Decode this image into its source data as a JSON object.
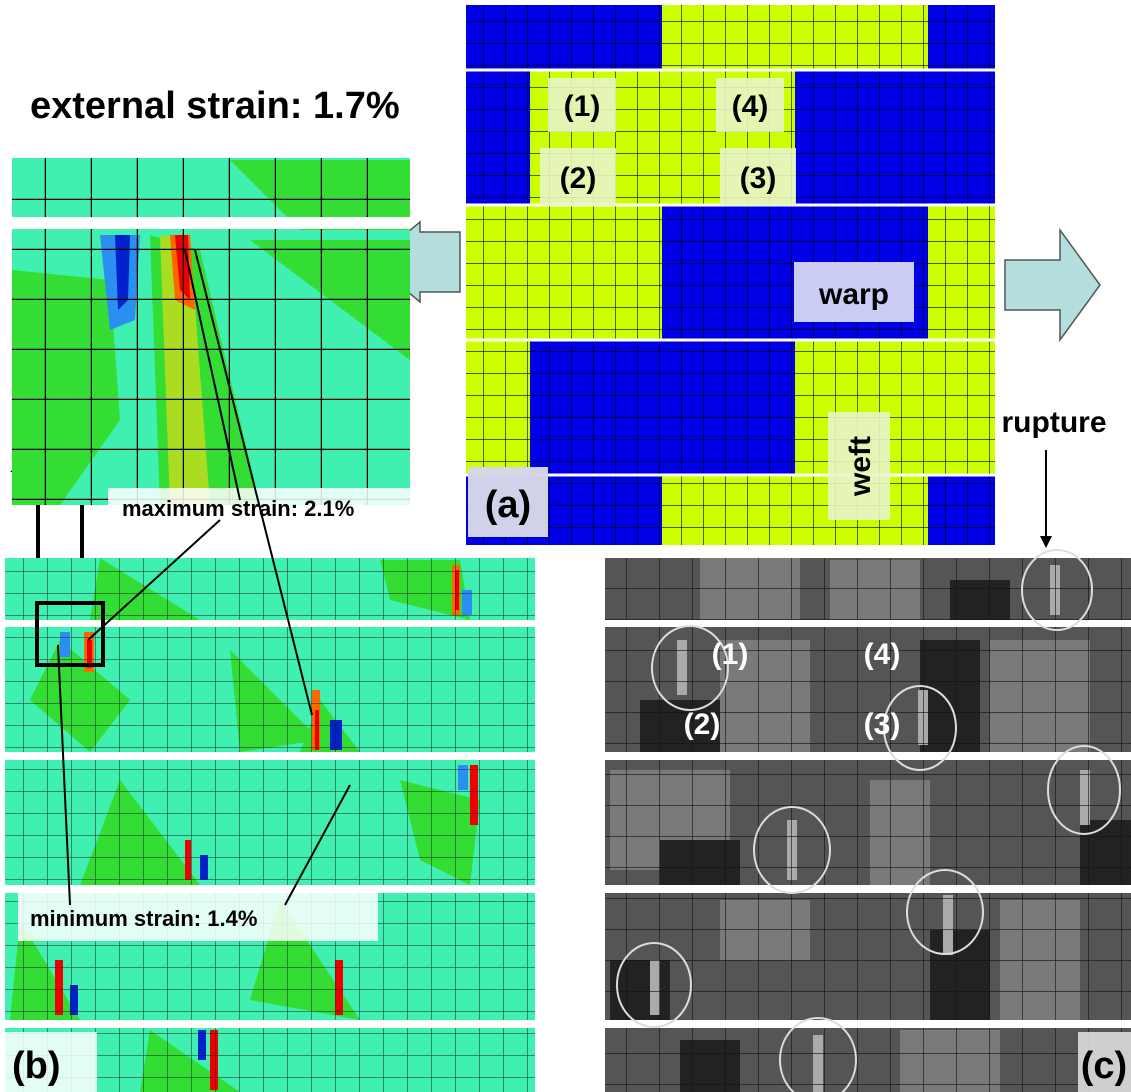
{
  "header": {
    "title": "external strain: 1.7%"
  },
  "panel_a": {
    "label": "(a)",
    "positions": [
      "(1)",
      "(4)",
      "(2)",
      "(3)"
    ],
    "warp": "warp",
    "weft": "weft"
  },
  "panel_b": {
    "label": "(b)",
    "max_label": "maximum strain: 2.1%",
    "min_label": "minimum strain: 1.4%"
  },
  "panel_c": {
    "label": "(c)",
    "rupture": "rupture",
    "positions": [
      "(1)",
      "(4)",
      "(2)",
      "(3)"
    ]
  }
}
